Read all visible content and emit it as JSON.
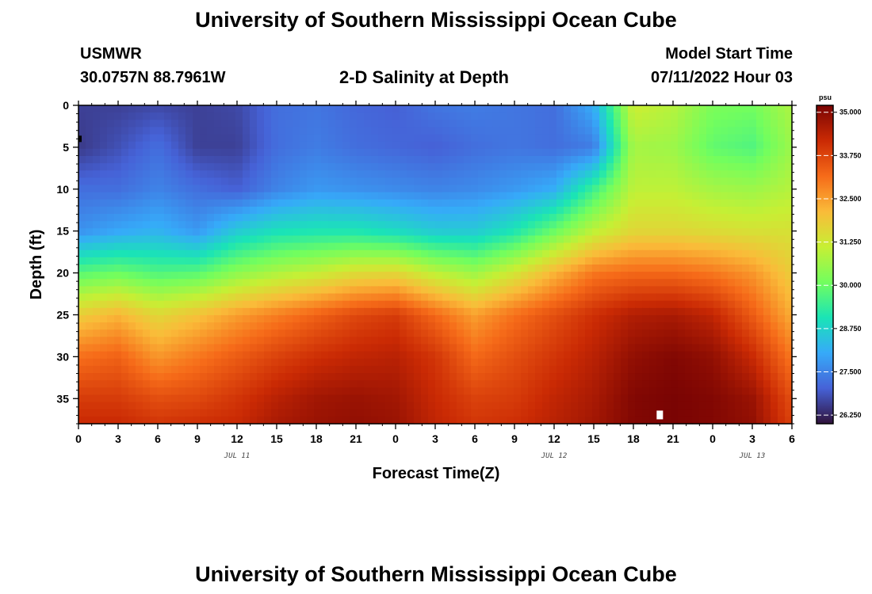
{
  "page": {
    "title": "University of Southern Mississippi Ocean Cube",
    "station": "USMWR",
    "coords": "30.0757N  88.7961W",
    "subtitle": "2-D Salinity at Depth",
    "start_label": "Model Start Time",
    "start_value": "07/11/2022 Hour 03",
    "footer_title": "University of Southern Mississippi Ocean Cube"
  },
  "chart_data": {
    "type": "heatmap",
    "title": "2-D Salinity at Depth",
    "xlabel": "Forecast Time(Z)",
    "ylabel": "Depth (ft)",
    "x_range": [
      0,
      54
    ],
    "y_range": [
      0,
      38
    ],
    "y_inverted": true,
    "x_ticks": [
      0,
      3,
      6,
      9,
      12,
      15,
      18,
      21,
      24,
      27,
      30,
      33,
      36,
      39,
      42,
      45,
      48,
      51,
      54
    ],
    "x_tick_labels": [
      "0",
      "3",
      "6",
      "9",
      "12",
      "15",
      "18",
      "21",
      "0",
      "3",
      "6",
      "9",
      "12",
      "15",
      "18",
      "21",
      "0",
      "3",
      "6"
    ],
    "y_ticks": [
      0,
      5,
      10,
      15,
      20,
      25,
      30,
      35
    ],
    "y_tick_labels": [
      "0",
      "5",
      "10",
      "15",
      "20",
      "25",
      "30",
      "35"
    ],
    "day_labels": [
      {
        "x": 12,
        "label": "JUL 11"
      },
      {
        "x": 36,
        "label": "JUL 12"
      },
      {
        "x": 51,
        "label": "JUL 13"
      }
    ],
    "colorbar": {
      "unit": "psu",
      "min": 26.0,
      "max": 35.2,
      "ticks": [
        35.0,
        33.75,
        32.5,
        31.25,
        30.0,
        28.75,
        27.5,
        26.25
      ],
      "tick_labels": [
        "35.000",
        "33.750",
        "32.500",
        "31.250",
        "30.000",
        "28.750",
        "27.500",
        "26.250"
      ],
      "colors": [
        "#30123b",
        "#4662d7",
        "#36aaf9",
        "#1ae4b6",
        "#72fe5e",
        "#c7ef34",
        "#fabb39",
        "#f66b19",
        "#ca2a04",
        "#7a0403"
      ]
    },
    "grid_hours": [
      0,
      3,
      6,
      9,
      12,
      15,
      18,
      21,
      24,
      27,
      30,
      33,
      36,
      39,
      42,
      45,
      48,
      51,
      54
    ],
    "grid_depths": [
      0,
      5,
      10,
      15,
      20,
      25,
      30,
      35,
      38
    ],
    "salinity_psu": [
      [
        26.6,
        26.6,
        26.7,
        26.6,
        26.7,
        27.2,
        27.3,
        27.1,
        27.0,
        27.3,
        27.4,
        27.3,
        27.2,
        28.1,
        31.2,
        30.9,
        30.2,
        30.1,
        30.8
      ],
      [
        26.5,
        26.8,
        27.2,
        26.6,
        26.6,
        27.2,
        27.4,
        27.2,
        27.1,
        27.0,
        27.2,
        27.3,
        27.2,
        27.4,
        30.7,
        30.6,
        29.9,
        29.7,
        30.6
      ],
      [
        27.2,
        27.2,
        27.5,
        27.2,
        27.0,
        27.5,
        27.8,
        27.7,
        27.6,
        27.5,
        27.6,
        27.8,
        28.1,
        29.5,
        31.0,
        31.0,
        30.7,
        30.6,
        30.9
      ],
      [
        27.7,
        28.0,
        28.2,
        27.8,
        28.6,
        29.0,
        29.1,
        29.1,
        28.9,
        28.6,
        28.6,
        29.1,
        30.0,
        31.0,
        31.6,
        31.6,
        31.5,
        31.4,
        31.4
      ],
      [
        29.8,
        30.0,
        29.7,
        29.8,
        30.4,
        30.8,
        31.1,
        31.5,
        31.6,
        31.0,
        30.6,
        31.3,
        32.2,
        33.0,
        33.2,
        33.2,
        33.0,
        32.6,
        31.8
      ],
      [
        31.8,
        32.2,
        31.6,
        32.0,
        32.5,
        32.9,
        33.3,
        33.7,
        33.9,
        33.2,
        32.5,
        33.1,
        33.6,
        34.1,
        34.5,
        34.6,
        34.3,
        33.4,
        32.3
      ],
      [
        33.1,
        33.3,
        32.6,
        33.0,
        33.4,
        33.8,
        34.1,
        34.3,
        34.4,
        34.0,
        33.2,
        33.6,
        34.0,
        34.4,
        34.9,
        35.1,
        34.9,
        34.2,
        33.0
      ],
      [
        33.9,
        33.9,
        33.6,
        33.7,
        34.0,
        34.4,
        34.7,
        34.8,
        34.7,
        34.2,
        33.8,
        33.9,
        34.3,
        34.6,
        35.1,
        35.2,
        35.1,
        34.8,
        33.6
      ],
      [
        34.2,
        34.2,
        34.0,
        34.1,
        34.2,
        34.6,
        34.8,
        34.9,
        34.8,
        34.3,
        34.0,
        34.1,
        34.4,
        34.7,
        35.1,
        35.2,
        35.1,
        34.9,
        33.8
      ]
    ],
    "markers": [
      {
        "x": 0,
        "y": 4,
        "shape": "small-black-bar"
      },
      {
        "x": 44,
        "y": 37,
        "shape": "white-square"
      }
    ]
  }
}
